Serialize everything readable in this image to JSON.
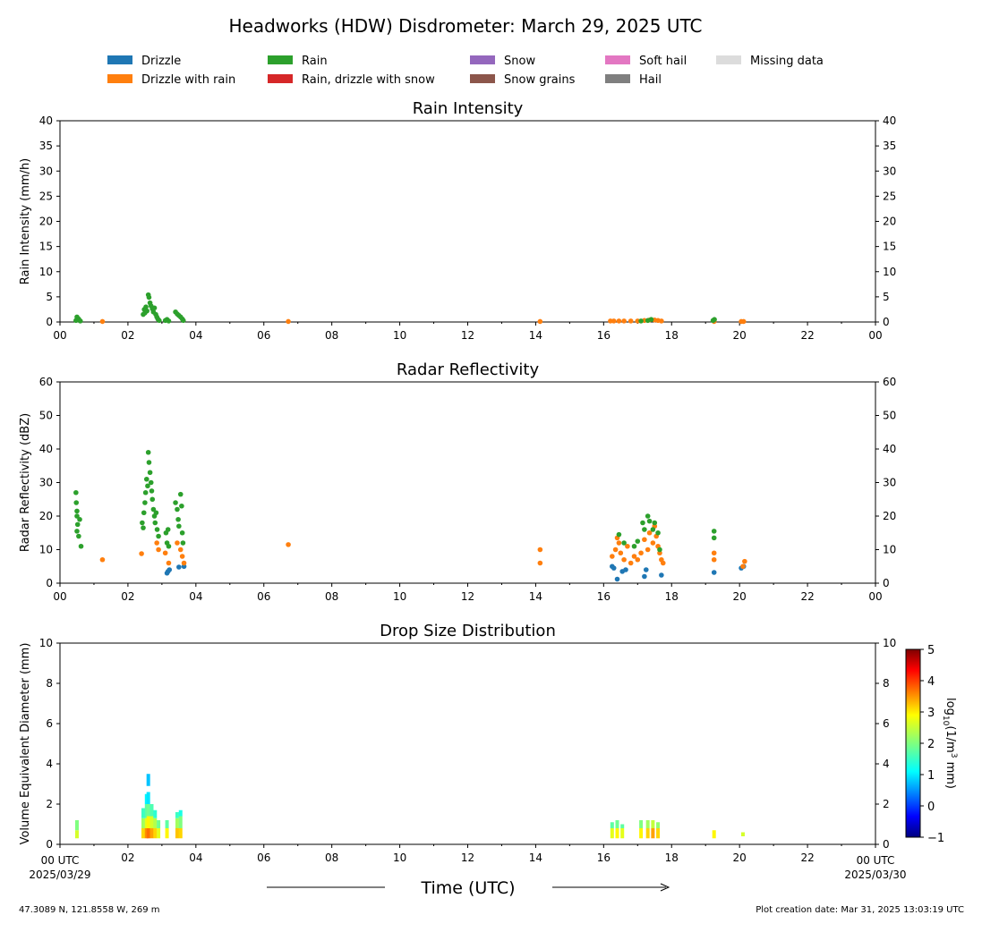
{
  "title": "Headworks (HDW) Disdrometer: March 29, 2025 UTC",
  "legend": [
    {
      "label": "Drizzle",
      "color": "#1f77b4"
    },
    {
      "label": "Drizzle with rain",
      "color": "#ff7f0e"
    },
    {
      "label": "Rain",
      "color": "#2ca02c"
    },
    {
      "label": "Rain, drizzle with snow",
      "color": "#d62728"
    },
    {
      "label": "Snow",
      "color": "#9467bd"
    },
    {
      "label": "Snow grains",
      "color": "#8c564b"
    },
    {
      "label": "Soft hail",
      "color": "#e377c2"
    },
    {
      "label": "Hail",
      "color": "#7f7f7f"
    },
    {
      "label": "Missing data",
      "color": "#dcdcdc"
    }
  ],
  "x_axis": {
    "label": "Time (UTC)",
    "tick_labels": [
      "00",
      "02",
      "04",
      "06",
      "08",
      "10",
      "12",
      "14",
      "16",
      "18",
      "20",
      "22",
      "00"
    ],
    "start_label": [
      "00 UTC",
      "2025/03/29"
    ],
    "end_label": [
      "00 UTC",
      "2025/03/30"
    ]
  },
  "footer": {
    "location": "47.3089 N, 121.8558 W, 269 m",
    "creation": "Plot creation date: Mar 31, 2025 13:03:19 UTC"
  },
  "colorbar": {
    "label": "log10(1/m3 mm)",
    "tick_labels": [
      "5",
      "4",
      "3",
      "2",
      "1",
      "0",
      "−1"
    ],
    "range": [
      -1,
      5
    ],
    "colormap": "jet"
  },
  "chart_data": [
    {
      "type": "scatter",
      "title": "Rain Intensity",
      "xlabel": "",
      "ylabel": "Rain Intensity (mm/h)",
      "xlim": [
        0,
        24
      ],
      "ylim": [
        0,
        40
      ],
      "y_tick_labels": [
        "0",
        "5",
        "10",
        "15",
        "20",
        "25",
        "30",
        "35",
        "40"
      ],
      "series": [
        {
          "name": "Drizzle",
          "color": "#1f77b4",
          "points": []
        },
        {
          "name": "Drizzle with rain",
          "color": "#ff7f0e",
          "points": [
            [
              1.25,
              0.1
            ],
            [
              6.72,
              0.1
            ],
            [
              14.13,
              0.1
            ],
            [
              16.2,
              0.2
            ],
            [
              16.3,
              0.2
            ],
            [
              16.45,
              0.2
            ],
            [
              16.6,
              0.2
            ],
            [
              16.8,
              0.2
            ],
            [
              17.0,
              0.2
            ],
            [
              17.2,
              0.3
            ],
            [
              17.35,
              0.4
            ],
            [
              17.5,
              0.4
            ],
            [
              17.6,
              0.3
            ],
            [
              17.7,
              0.2
            ],
            [
              19.25,
              0.1
            ],
            [
              20.05,
              0.1
            ],
            [
              20.12,
              0.1
            ]
          ]
        },
        {
          "name": "Rain",
          "color": "#2ca02c",
          "points": [
            [
              0.47,
              0.3
            ],
            [
              0.5,
              1.0
            ],
            [
              0.55,
              0.6
            ],
            [
              0.6,
              0.2
            ],
            [
              2.45,
              1.5
            ],
            [
              2.48,
              2.5
            ],
            [
              2.5,
              1.8
            ],
            [
              2.53,
              3.0
            ],
            [
              2.56,
              2.2
            ],
            [
              2.6,
              5.4
            ],
            [
              2.62,
              4.9
            ],
            [
              2.65,
              3.8
            ],
            [
              2.68,
              3.2
            ],
            [
              2.72,
              2.6
            ],
            [
              2.75,
              2.0
            ],
            [
              2.78,
              2.8
            ],
            [
              2.82,
              1.5
            ],
            [
              2.85,
              1.0
            ],
            [
              2.88,
              0.6
            ],
            [
              2.92,
              0.3
            ],
            [
              3.1,
              0.3
            ],
            [
              3.15,
              0.5
            ],
            [
              3.2,
              0.2
            ],
            [
              3.4,
              2.0
            ],
            [
              3.45,
              1.6
            ],
            [
              3.5,
              1.3
            ],
            [
              3.55,
              1.0
            ],
            [
              3.6,
              0.6
            ],
            [
              3.63,
              0.3
            ],
            [
              17.1,
              0.2
            ],
            [
              17.3,
              0.3
            ],
            [
              17.4,
              0.5
            ],
            [
              19.22,
              0.3
            ],
            [
              19.26,
              0.5
            ]
          ]
        }
      ]
    },
    {
      "type": "scatter",
      "title": "Radar Reflectivity",
      "xlabel": "",
      "ylabel": "Radar Reflectivity (dBZ)",
      "xlim": [
        0,
        24
      ],
      "ylim": [
        0,
        60
      ],
      "y_tick_labels": [
        "0",
        "10",
        "20",
        "30",
        "40",
        "50",
        "60"
      ],
      "series": [
        {
          "name": "Drizzle",
          "color": "#1f77b4",
          "points": [
            [
              3.15,
              3.0
            ],
            [
              3.18,
              3.5
            ],
            [
              3.22,
              4.0
            ],
            [
              3.5,
              4.8
            ],
            [
              3.65,
              5.0
            ],
            [
              16.25,
              5.0
            ],
            [
              16.3,
              4.5
            ],
            [
              16.4,
              1.2
            ],
            [
              16.55,
              3.5
            ],
            [
              16.65,
              4.0
            ],
            [
              17.2,
              2.0
            ],
            [
              17.25,
              4.0
            ],
            [
              17.7,
              2.4
            ],
            [
              19.25,
              3.2
            ],
            [
              20.05,
              4.5
            ],
            [
              20.12,
              5.0
            ]
          ]
        },
        {
          "name": "Drizzle with rain",
          "color": "#ff7f0e",
          "points": [
            [
              1.25,
              7.0
            ],
            [
              2.4,
              8.8
            ],
            [
              2.85,
              12.0
            ],
            [
              2.9,
              10.0
            ],
            [
              3.1,
              9.0
            ],
            [
              3.2,
              6.0
            ],
            [
              3.45,
              12.0
            ],
            [
              3.55,
              10.0
            ],
            [
              3.6,
              8.0
            ],
            [
              3.65,
              6.0
            ],
            [
              6.72,
              11.5
            ],
            [
              14.13,
              10.0
            ],
            [
              14.13,
              6.0
            ],
            [
              16.25,
              8.0
            ],
            [
              16.35,
              10.0
            ],
            [
              16.4,
              13.5
            ],
            [
              16.45,
              12.0
            ],
            [
              16.5,
              9.0
            ],
            [
              16.6,
              7.0
            ],
            [
              16.7,
              11.0
            ],
            [
              16.8,
              6.0
            ],
            [
              16.9,
              8.0
            ],
            [
              17.0,
              7.0
            ],
            [
              17.1,
              9.0
            ],
            [
              17.2,
              13.0
            ],
            [
              17.3,
              10.0
            ],
            [
              17.35,
              15.0
            ],
            [
              17.45,
              12.0
            ],
            [
              17.5,
              17.0
            ],
            [
              17.55,
              14.0
            ],
            [
              17.6,
              11.0
            ],
            [
              17.65,
              9.0
            ],
            [
              17.7,
              7.0
            ],
            [
              17.75,
              6.0
            ],
            [
              19.25,
              9.0
            ],
            [
              19.25,
              7.0
            ],
            [
              20.1,
              5.0
            ],
            [
              20.15,
              6.5
            ]
          ]
        },
        {
          "name": "Rain",
          "color": "#2ca02c",
          "points": [
            [
              0.47,
              27.0
            ],
            [
              0.48,
              24.0
            ],
            [
              0.5,
              21.5
            ],
            [
              0.5,
              20.0
            ],
            [
              0.52,
              17.5
            ],
            [
              0.5,
              15.5
            ],
            [
              0.55,
              14.0
            ],
            [
              0.58,
              19.0
            ],
            [
              0.62,
              11.0
            ],
            [
              2.42,
              18.0
            ],
            [
              2.45,
              16.5
            ],
            [
              2.47,
              21.0
            ],
            [
              2.5,
              24.0
            ],
            [
              2.52,
              27.0
            ],
            [
              2.55,
              31.0
            ],
            [
              2.58,
              29.0
            ],
            [
              2.6,
              39.0
            ],
            [
              2.62,
              36.0
            ],
            [
              2.65,
              33.0
            ],
            [
              2.68,
              30.0
            ],
            [
              2.7,
              27.5
            ],
            [
              2.72,
              25.0
            ],
            [
              2.75,
              22.0
            ],
            [
              2.78,
              20.0
            ],
            [
              2.8,
              18.0
            ],
            [
              2.83,
              21.0
            ],
            [
              2.86,
              16.0
            ],
            [
              2.9,
              14.0
            ],
            [
              3.12,
              15.0
            ],
            [
              3.15,
              12.0
            ],
            [
              3.18,
              16.0
            ],
            [
              3.2,
              11.0
            ],
            [
              3.4,
              24.0
            ],
            [
              3.45,
              22.0
            ],
            [
              3.48,
              19.0
            ],
            [
              3.5,
              17.0
            ],
            [
              3.55,
              26.5
            ],
            [
              3.58,
              23.0
            ],
            [
              3.6,
              15.0
            ],
            [
              3.62,
              12.0
            ],
            [
              16.45,
              14.5
            ],
            [
              16.6,
              12.0
            ],
            [
              16.9,
              11.0
            ],
            [
              17.0,
              12.5
            ],
            [
              17.15,
              18.0
            ],
            [
              17.2,
              16.0
            ],
            [
              17.3,
              20.0
            ],
            [
              17.35,
              18.5
            ],
            [
              17.45,
              16.0
            ],
            [
              17.5,
              18.0
            ],
            [
              17.6,
              15.0
            ],
            [
              17.65,
              10.0
            ],
            [
              19.25,
              15.5
            ],
            [
              19.25,
              13.5
            ]
          ]
        }
      ]
    },
    {
      "type": "heatmap",
      "title": "Drop Size Distribution",
      "xlabel": "Time (UTC)",
      "ylabel": "Volume Equivalent Diameter (mm)",
      "xlim": [
        0,
        24
      ],
      "ylim": [
        0,
        10
      ],
      "y_tick_labels": [
        "0",
        "2",
        "4",
        "6",
        "8",
        "10"
      ],
      "columns": [
        {
          "t": 0.5,
          "cells": [
            [
              0.3,
              0.7,
              2.5
            ],
            [
              0.7,
              1.2,
              2.0
            ]
          ]
        },
        {
          "t": 2.45,
          "cells": [
            [
              0.3,
              0.8,
              3.0
            ],
            [
              0.8,
              1.3,
              2.2
            ],
            [
              1.3,
              1.8,
              1.6
            ]
          ]
        },
        {
          "t": 2.55,
          "cells": [
            [
              0.3,
              0.8,
              3.4
            ],
            [
              0.8,
              1.3,
              2.6
            ],
            [
              1.3,
              2.0,
              1.8
            ],
            [
              2.0,
              2.5,
              1.2
            ]
          ]
        },
        {
          "t": 2.6,
          "cells": [
            [
              0.3,
              0.8,
              3.6
            ],
            [
              0.8,
              1.4,
              2.8
            ],
            [
              1.4,
              2.0,
              1.9
            ],
            [
              2.0,
              2.6,
              1.1
            ],
            [
              2.9,
              3.5,
              0.9
            ]
          ]
        },
        {
          "t": 2.7,
          "cells": [
            [
              0.3,
              0.8,
              3.3
            ],
            [
              0.8,
              1.4,
              2.5
            ],
            [
              1.4,
              2.0,
              1.7
            ]
          ]
        },
        {
          "t": 2.8,
          "cells": [
            [
              0.3,
              0.8,
              3.0
            ],
            [
              0.8,
              1.3,
              2.3
            ],
            [
              1.3,
              1.7,
              1.5
            ]
          ]
        },
        {
          "t": 2.9,
          "cells": [
            [
              0.3,
              0.8,
              2.6
            ],
            [
              0.8,
              1.2,
              1.9
            ]
          ]
        },
        {
          "t": 3.15,
          "cells": [
            [
              0.3,
              0.8,
              2.8
            ],
            [
              0.8,
              1.2,
              1.8
            ]
          ]
        },
        {
          "t": 3.45,
          "cells": [
            [
              0.3,
              0.8,
              3.1
            ],
            [
              0.8,
              1.3,
              2.2
            ],
            [
              1.3,
              1.6,
              1.6
            ]
          ]
        },
        {
          "t": 3.55,
          "cells": [
            [
              0.3,
              0.8,
              3.0
            ],
            [
              0.8,
              1.4,
              2.0
            ],
            [
              1.4,
              1.7,
              1.4
            ]
          ]
        },
        {
          "t": 16.25,
          "cells": [
            [
              0.3,
              0.8,
              2.6
            ],
            [
              0.8,
              1.1,
              1.8
            ]
          ]
        },
        {
          "t": 16.4,
          "cells": [
            [
              0.3,
              0.8,
              2.8
            ],
            [
              0.8,
              1.2,
              1.9
            ]
          ]
        },
        {
          "t": 16.55,
          "cells": [
            [
              0.3,
              0.8,
              2.6
            ],
            [
              0.8,
              1.0,
              1.8
            ]
          ]
        },
        {
          "t": 17.1,
          "cells": [
            [
              0.3,
              0.8,
              2.8
            ],
            [
              0.8,
              1.2,
              2.0
            ]
          ]
        },
        {
          "t": 17.3,
          "cells": [
            [
              0.3,
              0.8,
              3.0
            ],
            [
              0.8,
              1.2,
              2.2
            ]
          ]
        },
        {
          "t": 17.45,
          "cells": [
            [
              0.3,
              0.8,
              3.3
            ],
            [
              0.8,
              1.2,
              2.4
            ]
          ]
        },
        {
          "t": 17.6,
          "cells": [
            [
              0.3,
              0.8,
              3.0
            ],
            [
              0.8,
              1.1,
              2.1
            ]
          ]
        },
        {
          "t": 19.25,
          "cells": [
            [
              0.3,
              0.7,
              2.8
            ]
          ]
        },
        {
          "t": 20.1,
          "cells": [
            [
              0.4,
              0.6,
              2.5
            ]
          ]
        }
      ]
    }
  ]
}
